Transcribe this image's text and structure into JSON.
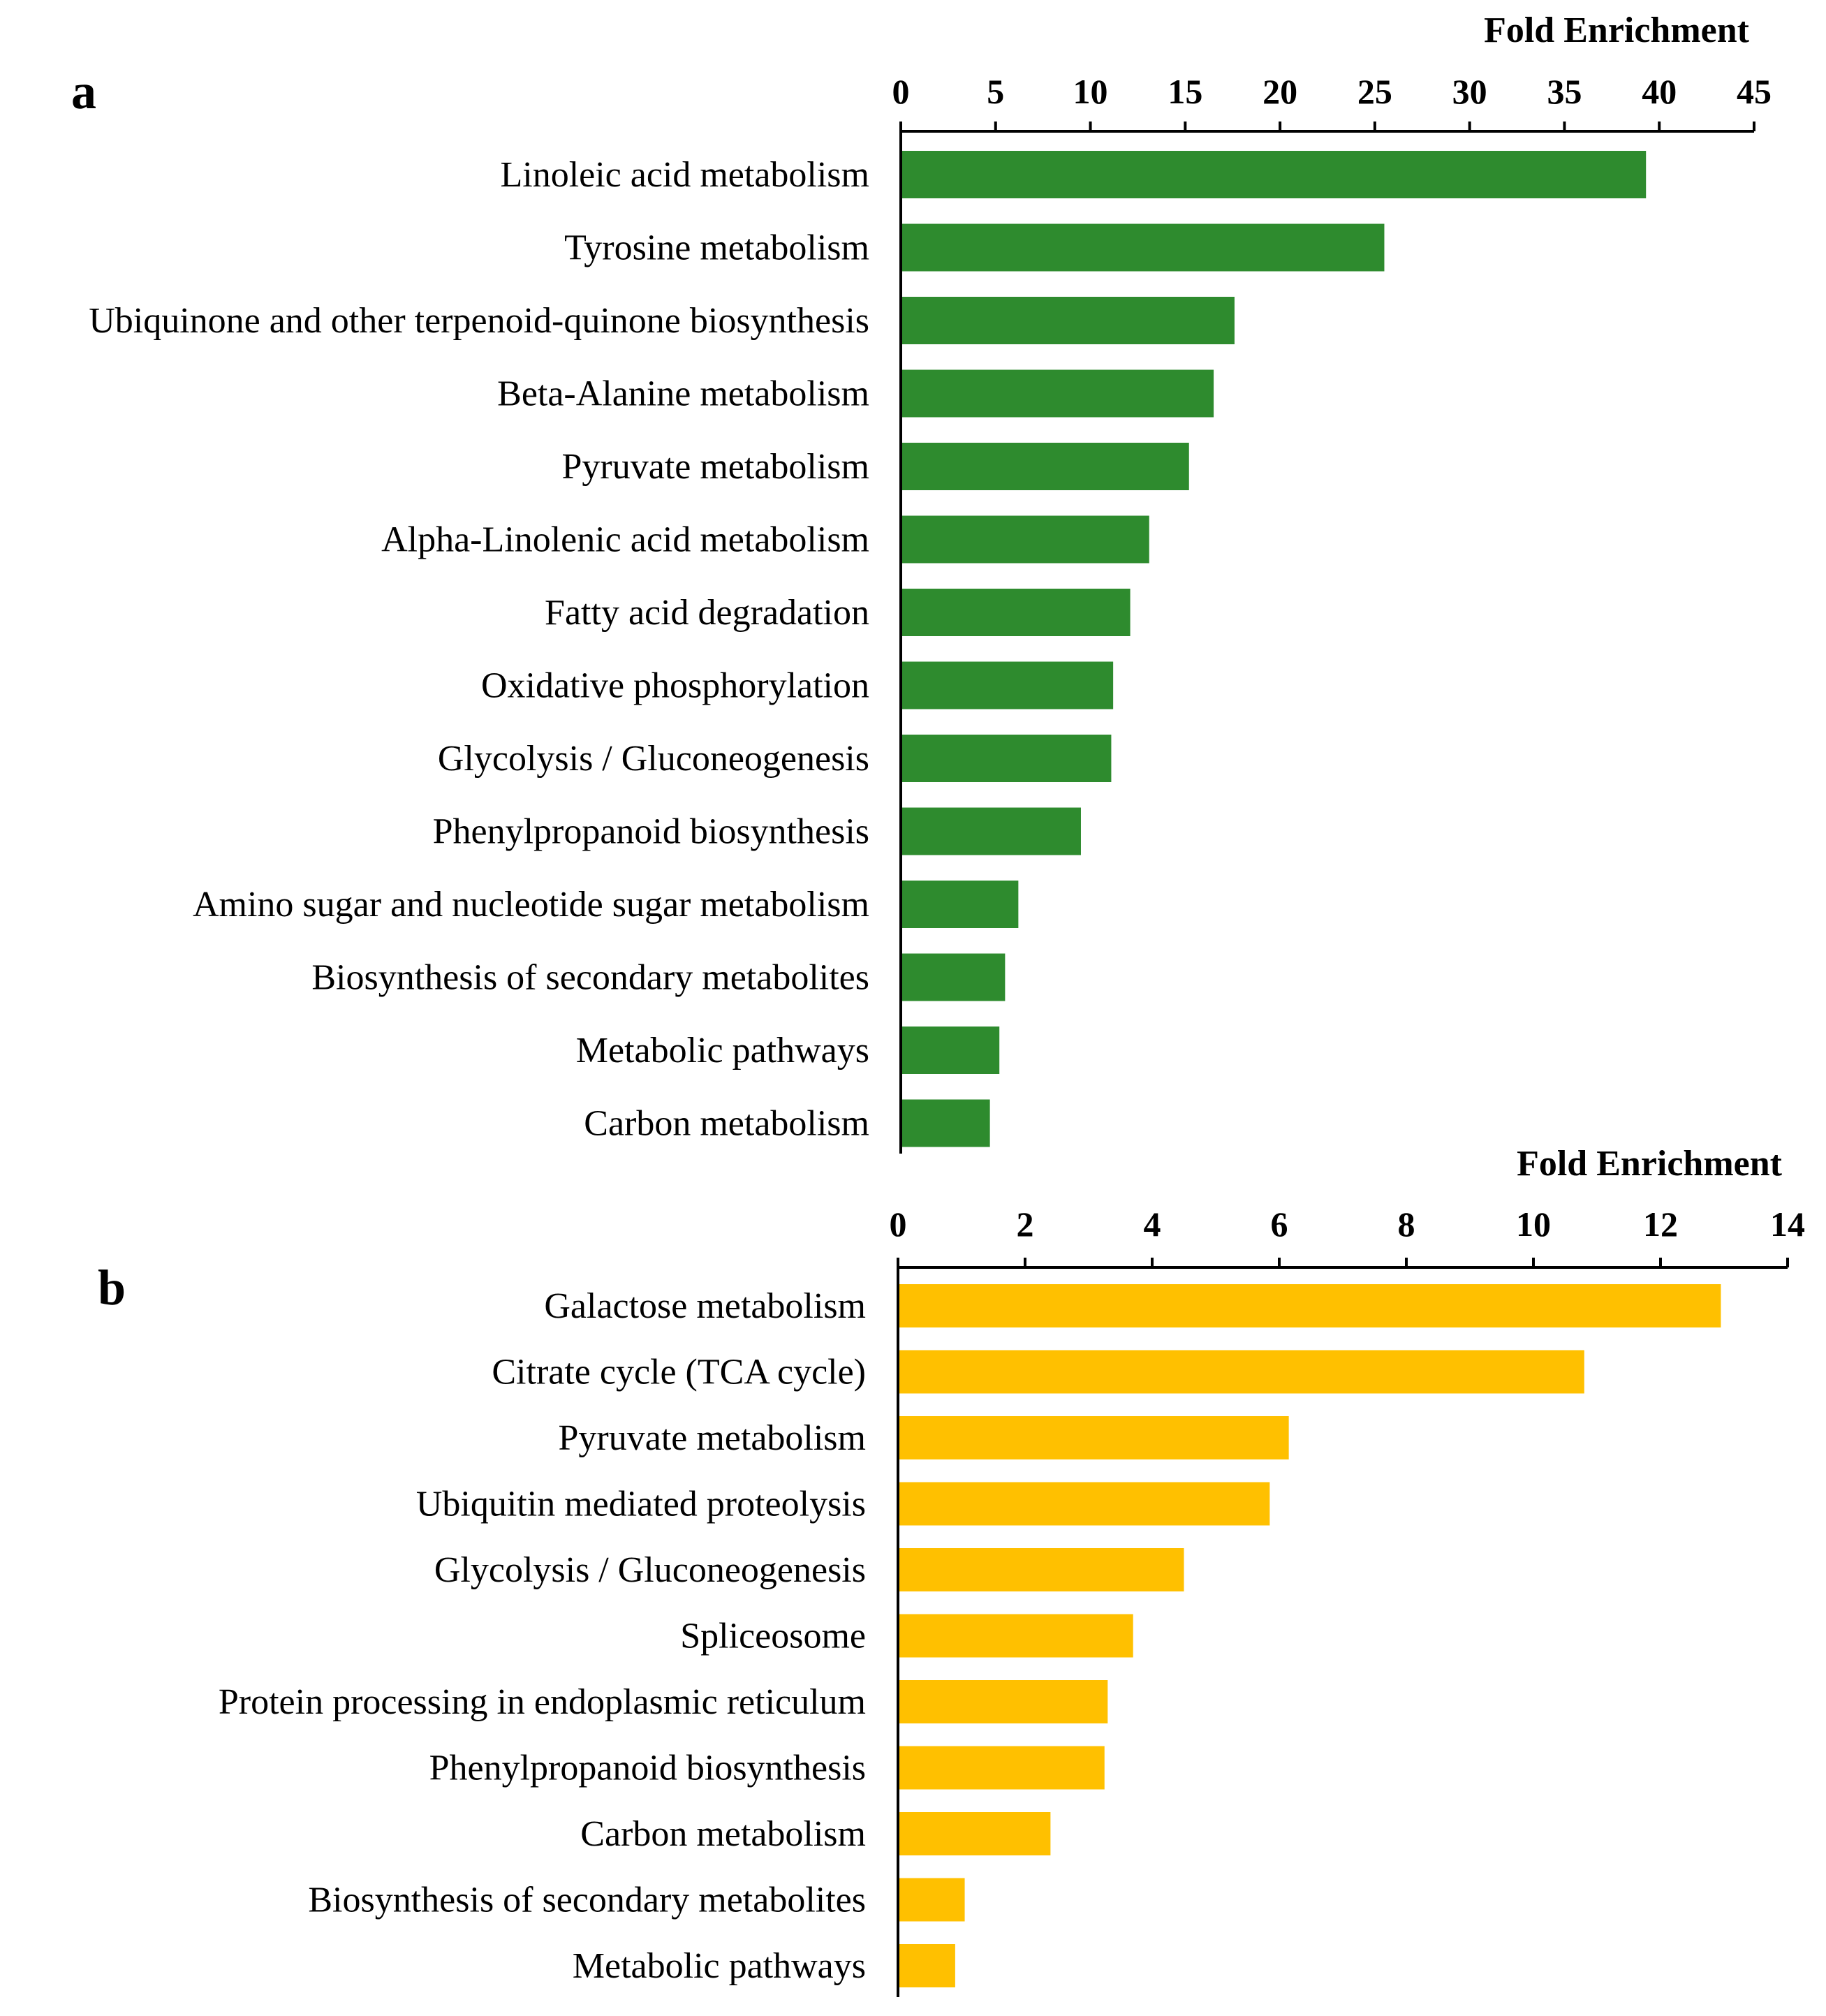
{
  "chart_data": [
    {
      "type": "bar",
      "orientation": "horizontal",
      "panel_label": "a",
      "xlabel": "Fold Enrichment",
      "xaxis_position": "top",
      "xlim": [
        0,
        45
      ],
      "xticks": [
        "0",
        "5",
        "10",
        "15",
        "20",
        "25",
        "30",
        "35",
        "40",
        "45"
      ],
      "color": "#2E8B2E",
      "categories": [
        "Linoleic acid metabolism",
        "Tyrosine metabolism",
        "Ubiquinone and other terpenoid-quinone biosynthesis",
        "Beta-Alanine metabolism",
        "Pyruvate metabolism",
        "Alpha-Linolenic acid metabolism",
        "Fatty acid degradation",
        "Oxidative phosphorylation",
        "Glycolysis / Gluconeogenesis",
        "Phenylpropanoid biosynthesis",
        "Amino sugar and nucleotide sugar metabolism",
        "Biosynthesis of secondary metabolites",
        "Metabolic pathways",
        "Carbon metabolism"
      ],
      "values": [
        39.3,
        25.5,
        17.6,
        16.5,
        15.2,
        13.1,
        12.1,
        11.2,
        11.1,
        9.5,
        6.2,
        5.5,
        5.2,
        4.7
      ]
    },
    {
      "type": "bar",
      "orientation": "horizontal",
      "panel_label": "b",
      "xlabel": "Fold Enrichment",
      "xaxis_position": "top",
      "xlim": [
        0,
        14
      ],
      "xticks": [
        "0",
        "2",
        "4",
        "6",
        "8",
        "10",
        "12",
        "14"
      ],
      "color": "#FFC000",
      "categories": [
        "Galactose metabolism",
        "Citrate cycle (TCA cycle)",
        "Pyruvate metabolism",
        "Ubiquitin mediated proteolysis",
        "Glycolysis / Gluconeogenesis",
        "Spliceosome",
        "Protein processing in endoplasmic reticulum",
        "Phenylpropanoid biosynthesis",
        "Carbon metabolism",
        "Biosynthesis of secondary metabolites",
        "Metabolic pathways"
      ],
      "values": [
        12.95,
        10.8,
        6.15,
        5.85,
        4.5,
        3.7,
        3.3,
        3.25,
        2.4,
        1.05,
        0.9
      ]
    }
  ]
}
